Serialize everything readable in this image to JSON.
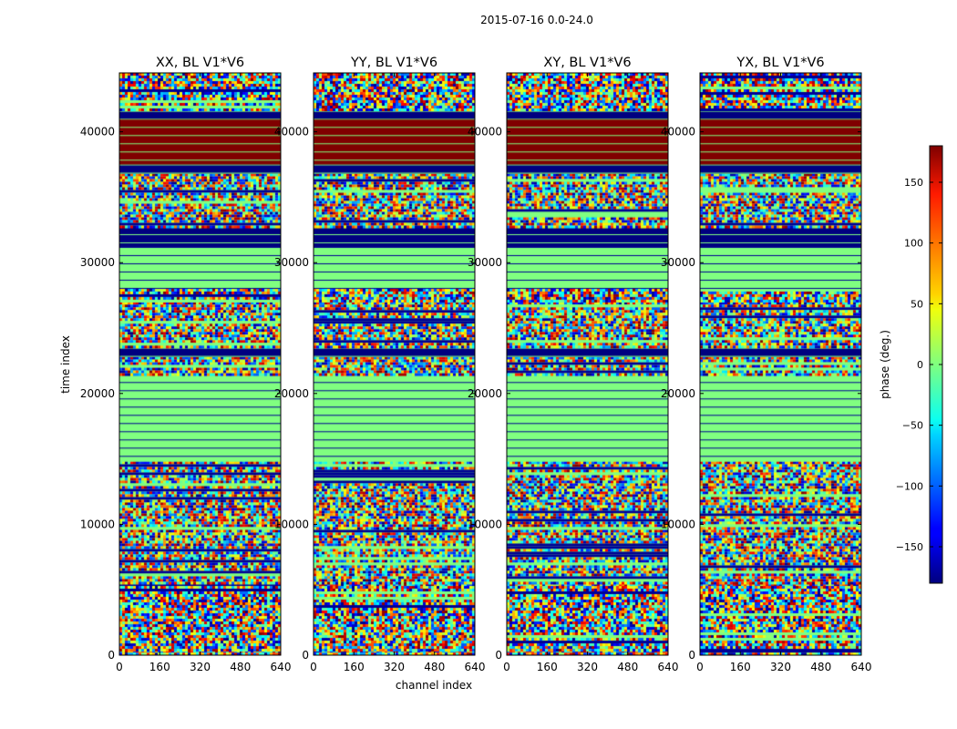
{
  "chart_data": {
    "type": "heatmap",
    "suptitle": "2015-07-16 0.0-24.0",
    "xlabel": "channel index",
    "ylabel": "time index",
    "x_ticks": [
      0,
      160,
      320,
      480,
      640
    ],
    "xlim": [
      0,
      640
    ],
    "y_ticks": [
      0,
      10000,
      20000,
      30000,
      40000
    ],
    "ylim": [
      0,
      44500
    ],
    "colormap": "jet",
    "colorbar": {
      "label": "phase (deg.)",
      "range": [
        -180,
        180
      ],
      "ticks": [
        150,
        100,
        50,
        0,
        -50,
        -100,
        -150
      ],
      "tick_labels": [
        "150",
        "100",
        "50",
        "0",
        "−50",
        "−100",
        "−150"
      ]
    },
    "panels": [
      {
        "title": "XX, BL V1*V6"
      },
      {
        "title": "YY, BL V1*V6"
      },
      {
        "title": "XY, BL V1*V6"
      },
      {
        "title": "YX, BL V1*V6"
      }
    ],
    "regions": [
      {
        "y": [
          0,
          400
        ],
        "kind": "noisy"
      },
      {
        "y": [
          400,
          3200
        ],
        "kind": "noisy"
      },
      {
        "y": [
          3200,
          5500
        ],
        "kind": "noisy"
      },
      {
        "y": [
          5500,
          14800
        ],
        "kind": "noisy"
      },
      {
        "y": [
          14800,
          21500
        ],
        "kind": "flat",
        "phase": 0
      },
      {
        "y": [
          21500,
          22800
        ],
        "kind": "noisy"
      },
      {
        "y": [
          22800,
          23500
        ],
        "kind": "flat",
        "phase": -180
      },
      {
        "y": [
          23500,
          27000
        ],
        "kind": "noisy"
      },
      {
        "y": [
          27000,
          28000
        ],
        "kind": "noisy"
      },
      {
        "y": [
          28000,
          31200
        ],
        "kind": "flat",
        "phase": 0
      },
      {
        "y": [
          31200,
          32800
        ],
        "kind": "flat",
        "phase": -180
      },
      {
        "y": [
          32800,
          36800
        ],
        "kind": "noisy"
      },
      {
        "y": [
          36800,
          37500
        ],
        "kind": "flat",
        "phase": -180
      },
      {
        "y": [
          37500,
          41000
        ],
        "kind": "flat",
        "phase": 180
      },
      {
        "y": [
          41000,
          41600
        ],
        "kind": "flat",
        "phase": -180
      },
      {
        "y": [
          41600,
          44500
        ],
        "kind": "noisy"
      }
    ]
  }
}
